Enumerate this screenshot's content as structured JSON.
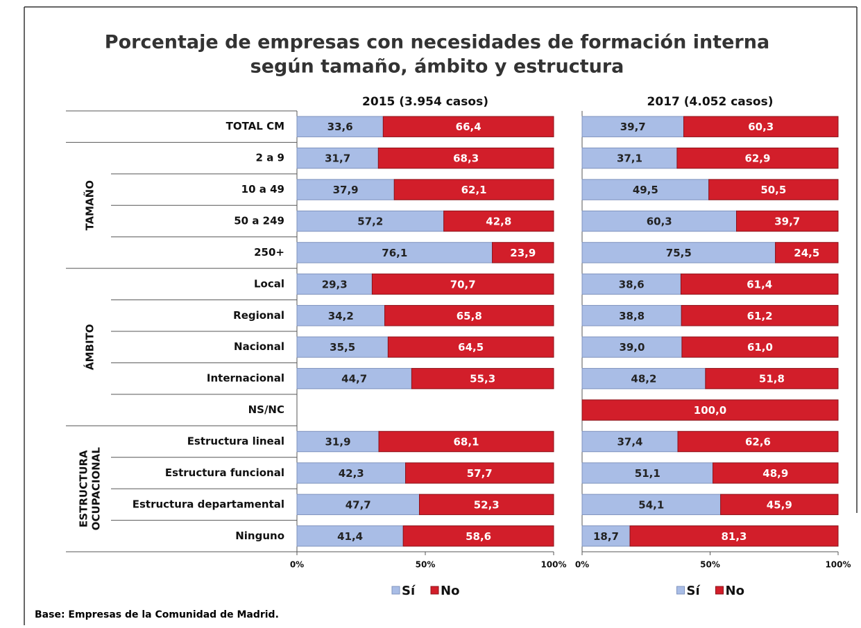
{
  "title": [
    "Porcentaje de empresas con necesidades de formación interna",
    "según tamaño, ámbito y estructura"
  ],
  "footnote": "Base: Empresas de la Comunidad de Madrid.",
  "groups": [
    [
      "TAMAÑO"
    ],
    [
      "ÁMBITO"
    ],
    [
      "ESTRUCTURA",
      "OCUPACIONAL"
    ]
  ],
  "categories": [
    "TOTAL CM",
    "2 a 9",
    "10 a 49",
    "50 a 249",
    "250+",
    "Local",
    "Regional",
    "Nacional",
    "Internacional",
    "NS/NC",
    "Estructura lineal",
    "Estructura funcional",
    "Estructura departamental",
    "Ninguno"
  ],
  "chart_data": [
    {
      "type": "stacked-bar",
      "subtitle": "2015 (3.954 casos)",
      "xlim": [
        0,
        100
      ],
      "xticks": [
        {
          "value": 0,
          "label": "0%"
        },
        {
          "value": 50,
          "label": "50%"
        },
        {
          "value": 100,
          "label": "100%"
        }
      ],
      "series": [
        {
          "name": "Sí",
          "color": "#a9bde6",
          "values": [
            33.6,
            31.7,
            37.9,
            57.2,
            76.1,
            29.3,
            34.2,
            35.5,
            44.7,
            null,
            31.9,
            42.3,
            47.7,
            41.4
          ],
          "value_labels": [
            "33,6",
            "31,7",
            "37,9",
            "57,2",
            "76,1",
            "29,3",
            "34,2",
            "35,5",
            "44,7",
            null,
            "31,9",
            "42,3",
            "47,7",
            "41,4"
          ]
        },
        {
          "name": "No",
          "color": "#d21e2a",
          "values": [
            66.4,
            68.3,
            62.1,
            42.8,
            23.9,
            70.7,
            65.8,
            64.5,
            55.3,
            null,
            68.1,
            57.7,
            52.3,
            58.6
          ],
          "value_labels": [
            "66,4",
            "68,3",
            "62,1",
            "42,8",
            "23,9",
            "70,7",
            "65,8",
            "64,5",
            "55,3",
            null,
            "68,1",
            "57,7",
            "52,3",
            "58,6"
          ]
        }
      ]
    },
    {
      "type": "stacked-bar",
      "subtitle": "2017 (4.052 casos)",
      "xlim": [
        0,
        100
      ],
      "xticks": [
        {
          "value": 0,
          "label": "0%"
        },
        {
          "value": 50,
          "label": "50%"
        },
        {
          "value": 100,
          "label": "100%"
        }
      ],
      "series": [
        {
          "name": "Sí",
          "color": "#a9bde6",
          "values": [
            39.7,
            37.1,
            49.5,
            60.3,
            75.5,
            38.6,
            38.8,
            39.0,
            48.2,
            0,
            37.4,
            51.1,
            54.1,
            18.7
          ],
          "value_labels": [
            "39,7",
            "37,1",
            "49,5",
            "60,3",
            "75,5",
            "38,6",
            "38,8",
            "39,0",
            "48,2",
            null,
            "37,4",
            "51,1",
            "54,1",
            "18,7"
          ]
        },
        {
          "name": "No",
          "color": "#d21e2a",
          "values": [
            60.3,
            62.9,
            50.5,
            39.7,
            24.5,
            61.4,
            61.2,
            61.0,
            51.8,
            100.0,
            62.6,
            48.9,
            45.9,
            81.3
          ],
          "value_labels": [
            "60,3",
            "62,9",
            "50,5",
            "39,7",
            "24,5",
            "61,4",
            "61,2",
            "61,0",
            "51,8",
            "100,0",
            "62,6",
            "48,9",
            "45,9",
            "81,3"
          ]
        }
      ]
    }
  ]
}
